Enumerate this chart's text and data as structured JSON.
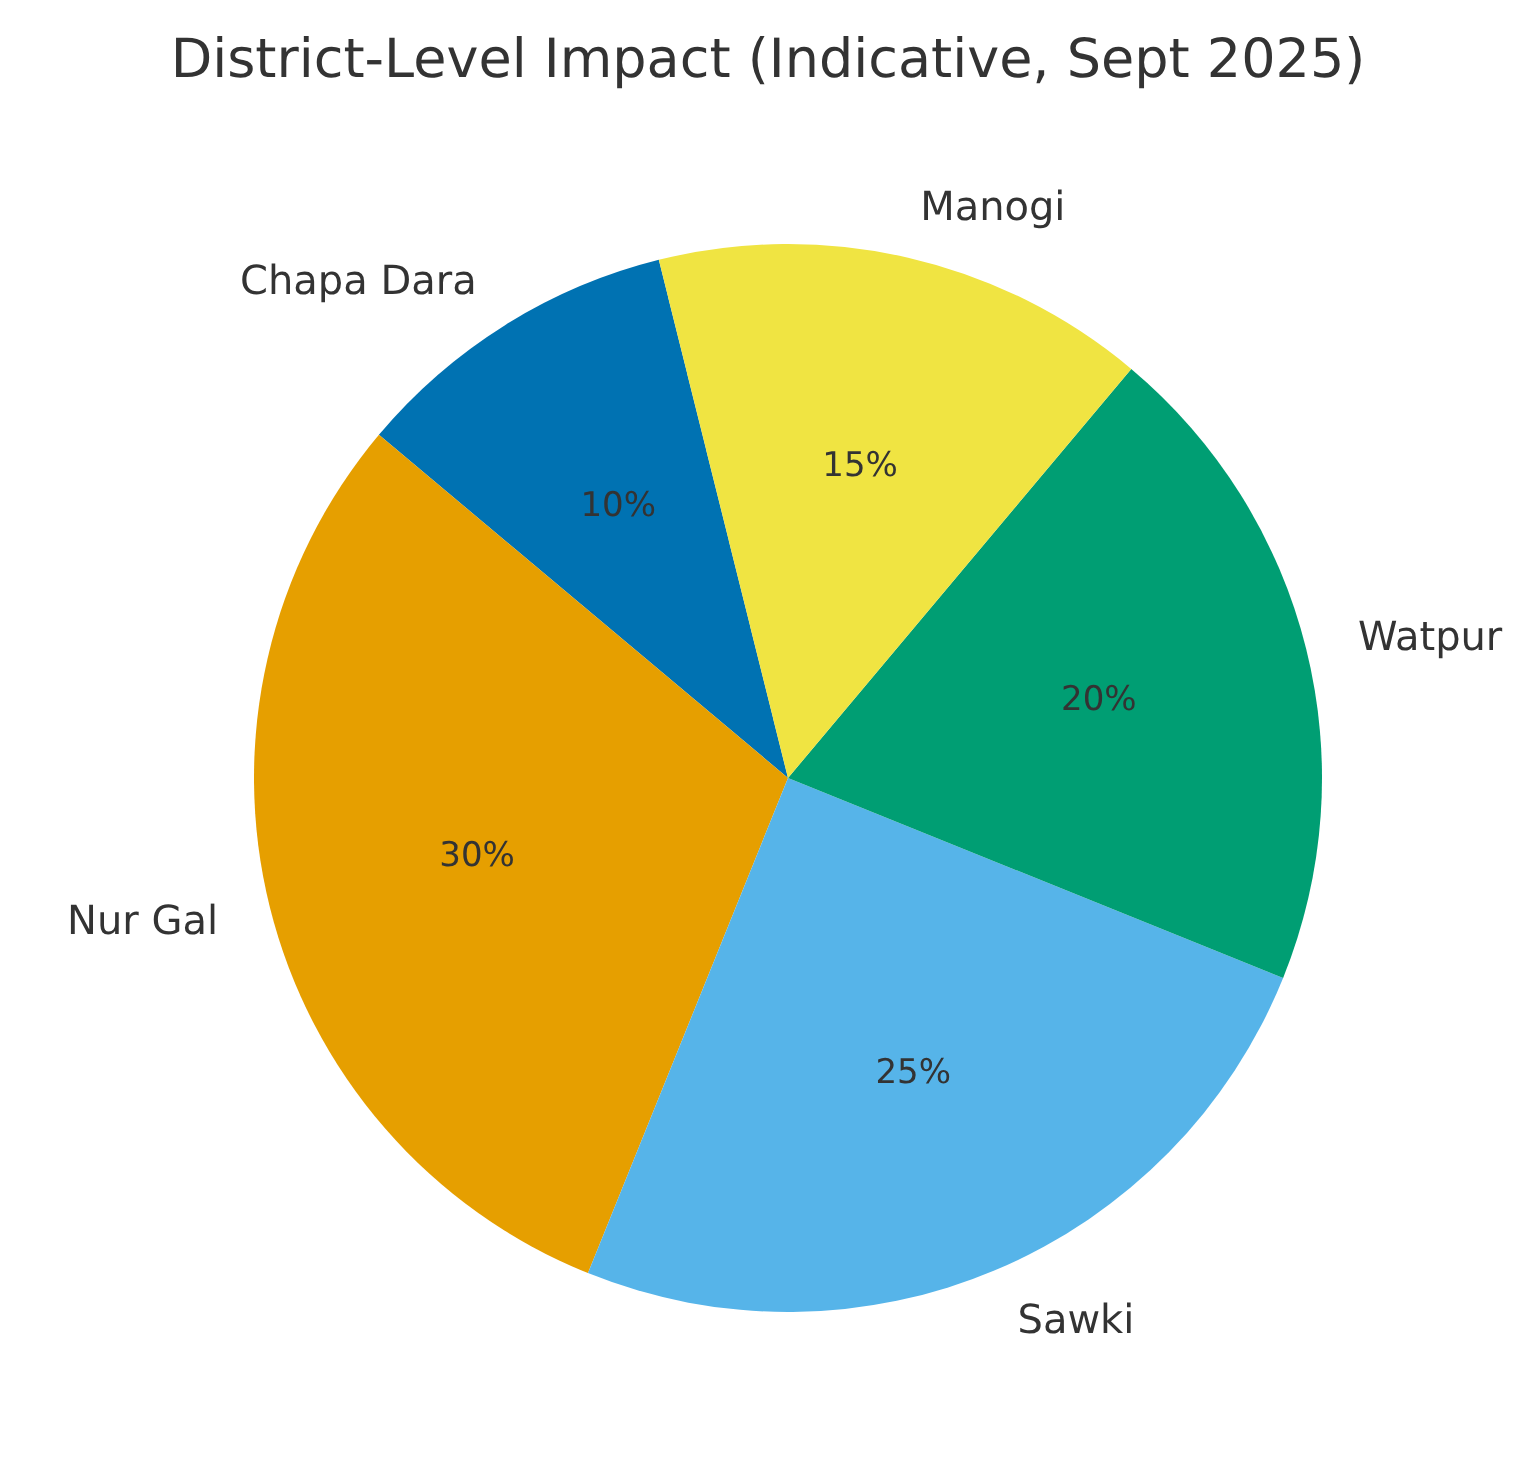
{
  "chart_data": {
    "type": "pie",
    "title": "District-Level Impact (Indicative, Sept 2025)",
    "categories": [
      "Chapa Dara",
      "Nur Gal",
      "Sawki",
      "Watpur",
      "Manogi"
    ],
    "values": [
      10,
      30,
      25,
      20,
      15
    ],
    "colors": [
      "#0072b2",
      "#e69f00",
      "#56b4e9",
      "#009e73",
      "#f0e442"
    ],
    "value_labels": [
      "10%",
      "30%",
      "25%",
      "20%",
      "15%"
    ],
    "legend": false
  }
}
